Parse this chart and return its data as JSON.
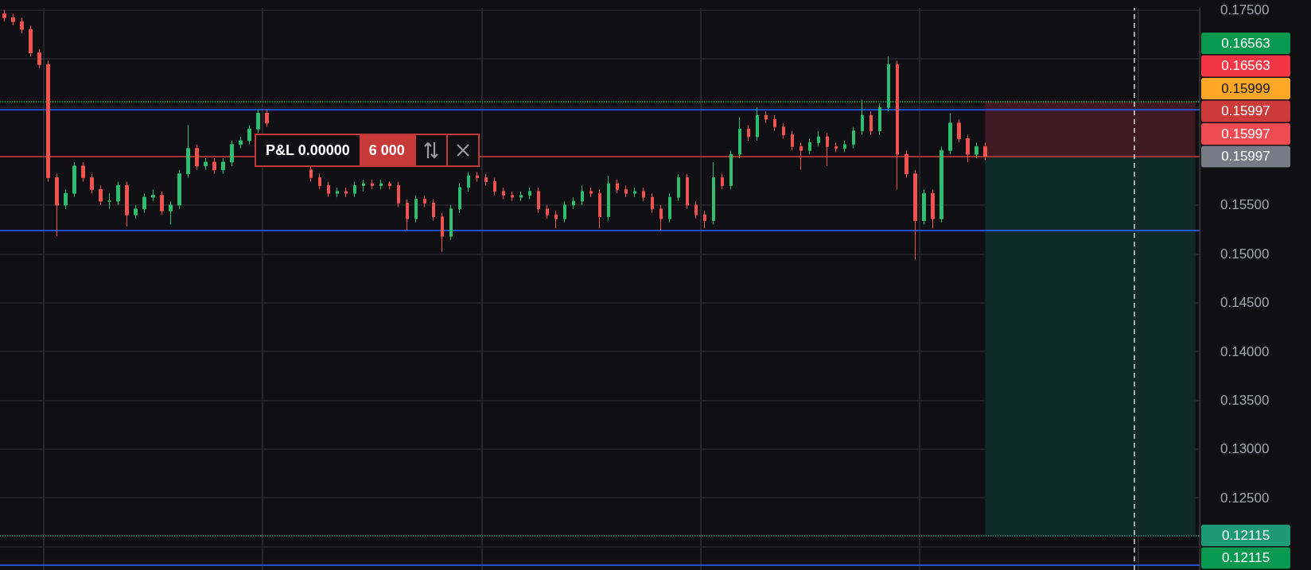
{
  "chart_data": {
    "type": "candlestick",
    "categories": [
      null,
      null,
      null,
      null,
      null,
      null,
      null,
      null,
      null,
      null,
      null,
      null,
      null,
      null,
      null,
      null,
      null,
      null,
      null,
      null,
      null,
      null,
      null,
      null,
      null,
      null,
      null,
      null,
      null,
      null,
      null,
      null,
      null,
      null,
      null,
      null,
      null,
      null,
      null,
      null,
      null,
      null,
      null,
      null,
      null,
      null,
      null,
      null,
      null,
      null,
      null,
      null,
      null,
      null,
      null,
      null,
      null,
      null,
      null,
      null,
      null,
      null,
      null,
      null,
      null,
      null,
      null,
      null,
      null,
      null,
      null,
      null,
      null,
      null,
      null,
      null,
      null,
      null,
      null,
      null,
      null,
      null,
      null,
      null,
      null,
      null,
      null,
      null,
      null,
      null,
      null,
      null,
      null,
      null,
      null,
      null,
      null,
      null,
      null,
      null,
      null,
      null,
      null,
      null,
      null,
      null,
      null,
      null,
      null,
      null,
      null,
      null,
      null,
      null,
      null,
      null,
      null,
      null,
      null,
      null,
      null,
      null,
      null,
      null,
      null,
      null,
      null,
      null,
      null,
      null,
      null,
      null,
      null,
      null,
      null,
      null,
      null
    ],
    "ohlc": [
      [
        0.1746,
        0.175,
        0.1738,
        0.1742
      ],
      [
        0.1742,
        0.1746,
        0.1734,
        0.1738
      ],
      [
        0.1738,
        0.1742,
        0.1726,
        0.173
      ],
      [
        0.173,
        0.1734,
        0.1702,
        0.1706
      ],
      [
        0.1706,
        0.171,
        0.169,
        0.1694
      ],
      [
        0.1694,
        0.1698,
        0.1574,
        0.1578
      ],
      [
        0.1578,
        0.1582,
        0.1518,
        0.155
      ],
      [
        0.155,
        0.1566,
        0.1546,
        0.1562
      ],
      [
        0.1562,
        0.1594,
        0.1558,
        0.159
      ],
      [
        0.159,
        0.1594,
        0.1574,
        0.1578
      ],
      [
        0.1578,
        0.1582,
        0.1562,
        0.1566
      ],
      [
        0.1566,
        0.157,
        0.155,
        0.1554
      ],
      [
        0.1554,
        0.1562,
        0.1546,
        0.1554
      ],
      [
        0.1554,
        0.1574,
        0.155,
        0.157
      ],
      [
        0.157,
        0.1574,
        0.1528,
        0.154
      ],
      [
        0.154,
        0.155,
        0.1536,
        0.1546
      ],
      [
        0.1546,
        0.1562,
        0.1542,
        0.1558
      ],
      [
        0.1558,
        0.1566,
        0.1554,
        0.156
      ],
      [
        0.156,
        0.1564,
        0.154,
        0.1544
      ],
      [
        0.1544,
        0.1554,
        0.153,
        0.155
      ],
      [
        0.155,
        0.1586,
        0.1546,
        0.1582
      ],
      [
        0.1582,
        0.1632,
        0.1578,
        0.1608
      ],
      [
        0.1608,
        0.1612,
        0.1586,
        0.159
      ],
      [
        0.159,
        0.1598,
        0.1586,
        0.1594
      ],
      [
        0.1594,
        0.1598,
        0.1582,
        0.1586
      ],
      [
        0.1586,
        0.1598,
        0.1582,
        0.1594
      ],
      [
        0.1594,
        0.1616,
        0.159,
        0.1612
      ],
      [
        0.1612,
        0.162,
        0.1608,
        0.1616
      ],
      [
        0.1616,
        0.1632,
        0.1612,
        0.1628
      ],
      [
        0.1628,
        0.1648,
        0.1624,
        0.1644
      ],
      [
        0.1644,
        0.1648,
        0.163,
        0.1634
      ],
      null,
      null,
      null,
      null,
      [
        0.1586,
        0.159,
        0.1574,
        0.1578
      ],
      [
        0.1578,
        0.1582,
        0.1566,
        0.157
      ],
      [
        0.157,
        0.1574,
        0.1558,
        0.1562
      ],
      [
        0.1562,
        0.1568,
        0.1558,
        0.1564
      ],
      [
        0.1564,
        0.1568,
        0.1558,
        0.1562
      ],
      [
        0.1562,
        0.1574,
        0.1558,
        0.157
      ],
      [
        0.157,
        0.1576,
        0.1564,
        0.1572
      ],
      [
        0.1572,
        0.1576,
        0.1566,
        0.157
      ],
      [
        0.157,
        0.1576,
        0.1566,
        0.1572
      ],
      [
        0.1572,
        0.1574,
        0.1566,
        0.157
      ],
      [
        0.157,
        0.1574,
        0.1548,
        0.1552
      ],
      [
        0.1552,
        0.1556,
        0.1524,
        0.1536
      ],
      [
        0.1536,
        0.156,
        0.1532,
        0.1556
      ],
      [
        0.1556,
        0.156,
        0.1548,
        0.1552
      ],
      [
        0.1552,
        0.1556,
        0.1534,
        0.1538
      ],
      [
        0.1538,
        0.1542,
        0.1502,
        0.1518
      ],
      [
        0.1518,
        0.155,
        0.1514,
        0.1546
      ],
      [
        0.1546,
        0.1572,
        0.1542,
        0.1568
      ],
      [
        0.1568,
        0.1584,
        0.1564,
        0.158
      ],
      [
        0.158,
        0.1584,
        0.1574,
        0.1578
      ],
      [
        0.1578,
        0.1582,
        0.157,
        0.1574
      ],
      [
        0.1574,
        0.1578,
        0.156,
        0.1564
      ],
      [
        0.1564,
        0.1568,
        0.1556,
        0.156
      ],
      [
        0.156,
        0.1564,
        0.1554,
        0.1558
      ],
      [
        0.1558,
        0.1564,
        0.1554,
        0.156
      ],
      [
        0.156,
        0.1568,
        0.1556,
        0.1564
      ],
      [
        0.1564,
        0.1568,
        0.1542,
        0.1546
      ],
      [
        0.1546,
        0.155,
        0.1536,
        0.154
      ],
      [
        0.154,
        0.1544,
        0.1526,
        0.1536
      ],
      [
        0.1536,
        0.1554,
        0.1532,
        0.155
      ],
      [
        0.155,
        0.1558,
        0.1546,
        0.1554
      ],
      [
        0.1554,
        0.157,
        0.155,
        0.1564
      ],
      [
        0.1564,
        0.1568,
        0.1558,
        0.1562
      ],
      [
        0.1562,
        0.1566,
        0.1526,
        0.1538
      ],
      [
        0.1538,
        0.158,
        0.1534,
        0.1572
      ],
      [
        0.1572,
        0.1576,
        0.1562,
        0.1566
      ],
      [
        0.1566,
        0.157,
        0.1558,
        0.1562
      ],
      [
        0.1562,
        0.1568,
        0.1558,
        0.1564
      ],
      [
        0.1564,
        0.1568,
        0.1554,
        0.1558
      ],
      [
        0.1558,
        0.1562,
        0.1542,
        0.1546
      ],
      [
        0.1546,
        0.155,
        0.1524,
        0.1536
      ],
      [
        0.1536,
        0.1562,
        0.1532,
        0.1558
      ],
      [
        0.1558,
        0.1582,
        0.1554,
        0.1578
      ],
      [
        0.1578,
        0.1582,
        0.1546,
        0.155
      ],
      [
        0.155,
        0.1554,
        0.1536,
        0.154
      ],
      [
        0.154,
        0.1544,
        0.1526,
        0.1534
      ],
      [
        0.1534,
        0.1594,
        0.153,
        0.1578
      ],
      [
        0.1578,
        0.1582,
        0.1566,
        0.157
      ],
      [
        0.157,
        0.1606,
        0.1566,
        0.1602
      ],
      [
        0.1602,
        0.164,
        0.1598,
        0.1628
      ],
      [
        0.1628,
        0.1632,
        0.1616,
        0.162
      ],
      [
        0.162,
        0.165,
        0.1616,
        0.1642
      ],
      [
        0.1642,
        0.1646,
        0.1634,
        0.1638
      ],
      [
        0.1638,
        0.1642,
        0.1626,
        0.163
      ],
      [
        0.163,
        0.1634,
        0.1618,
        0.1622
      ],
      [
        0.1622,
        0.1626,
        0.1606,
        0.161
      ],
      [
        0.161,
        0.1614,
        0.1586,
        0.1606
      ],
      [
        0.1606,
        0.1618,
        0.1602,
        0.1614
      ],
      [
        0.1614,
        0.1626,
        0.161,
        0.162
      ],
      [
        0.162,
        0.1624,
        0.159,
        0.161
      ],
      [
        0.161,
        0.1614,
        0.1604,
        0.1608
      ],
      [
        0.1608,
        0.1616,
        0.1604,
        0.1612
      ],
      [
        0.1612,
        0.163,
        0.1608,
        0.1626
      ],
      [
        0.1626,
        0.1658,
        0.1622,
        0.1642
      ],
      [
        0.1642,
        0.1646,
        0.1622,
        0.1626
      ],
      [
        0.1626,
        0.1654,
        0.1622,
        0.165
      ],
      [
        0.165,
        0.1702,
        0.1646,
        0.1694
      ],
      [
        0.1694,
        0.1698,
        0.1566,
        0.1602
      ],
      [
        0.1602,
        0.1606,
        0.1578,
        0.1582
      ],
      [
        0.1582,
        0.1586,
        0.1494,
        0.1534
      ],
      [
        0.1534,
        0.1566,
        0.153,
        0.1562
      ],
      [
        0.1562,
        0.1566,
        0.1526,
        0.1536
      ],
      [
        0.1536,
        0.161,
        0.1532,
        0.1606
      ],
      [
        0.1606,
        0.1644,
        0.1602,
        0.1634
      ],
      [
        0.1634,
        0.1638,
        0.1614,
        0.1618
      ],
      [
        0.1618,
        0.1622,
        0.1594,
        0.1602
      ],
      [
        0.1602,
        0.1614,
        0.1598,
        0.161
      ],
      [
        0.161,
        0.1614,
        0.1596,
        0.16
      ],
      null,
      null,
      null,
      null,
      null,
      null,
      null,
      null,
      null,
      null,
      null,
      null,
      null,
      null,
      null,
      null,
      null,
      null,
      null,
      null,
      null,
      null,
      null,
      null
    ],
    "ylim": [
      0.1176,
      0.1752
    ],
    "yticks": [
      {
        "value": 0.12,
        "label": null
      },
      {
        "value": 0.125,
        "label": "0.12500"
      },
      {
        "value": 0.13,
        "label": "0.13000"
      },
      {
        "value": 0.135,
        "label": "0.13500"
      },
      {
        "value": 0.14,
        "label": "0.14000"
      },
      {
        "value": 0.145,
        "label": "0.14500"
      },
      {
        "value": 0.15,
        "label": "0.15000"
      },
      {
        "value": 0.155,
        "label": "0.15500"
      },
      {
        "value": 0.16,
        "label": null
      },
      {
        "value": 0.165,
        "label": null
      },
      {
        "value": 0.17,
        "label": null
      },
      {
        "value": 0.175,
        "label": "0.17500"
      }
    ],
    "tick_labels": "y",
    "grid": true,
    "ref_lines": [
      {
        "axis": "y",
        "value": 0.16563,
        "color": "#089950",
        "line_style": "dotted"
      },
      {
        "axis": "y",
        "value": 0.15997,
        "label": "0.15997",
        "color": "#cc3a3a",
        "line_style": "solid"
      },
      {
        "axis": "y",
        "value": 0.12115,
        "label": "0.12115",
        "color": "#1d9a75",
        "line_style": "dotted"
      },
      {
        "axis": "y",
        "value": 0.1648,
        "color": "#2962ff",
        "line_style": "solid"
      },
      {
        "axis": "y",
        "value": 0.1524,
        "color": "#2962ff",
        "line_style": "solid"
      },
      {
        "axis": "y",
        "value": 0.1181,
        "color": "#2962ff",
        "line_style": "solid"
      }
    ],
    "bands": [
      {
        "axis": "y",
        "from": 0.15997,
        "to": 0.16563,
        "color": "#3f1a22"
      },
      {
        "axis": "y",
        "from": 0.12115,
        "to": 0.15997,
        "color": "#0f2b29"
      }
    ],
    "annotations": [
      "P&L 0.00000",
      "6 000",
      "0.16563",
      "0.16563",
      "0.15999",
      "0.15997",
      "0.15997",
      "0.12115"
    ]
  }
}
